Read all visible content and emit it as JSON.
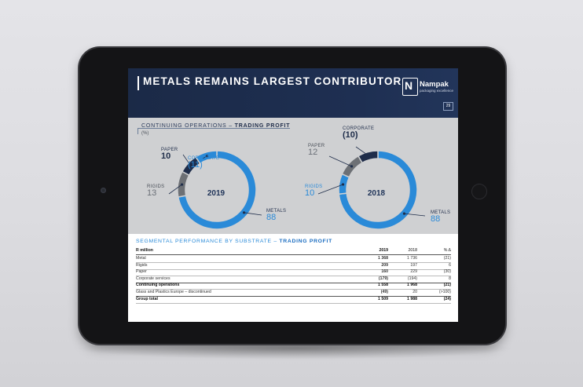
{
  "slide": {
    "title": "METALS REMAINS LARGEST CONTRIBUTOR",
    "page": "29",
    "logo": {
      "mark": "N",
      "name": "Nampak",
      "tagline": "packaging excellence"
    }
  },
  "section": {
    "prefix": "CONTINUING OPERATIONS – ",
    "emphasis": "TRADING PROFIT",
    "unit": "(%)"
  },
  "chart_data": [
    {
      "type": "pie",
      "title": "2019",
      "categories": [
        "CORPORATE",
        "PAPER",
        "RIGIDS",
        "METALS"
      ],
      "labels": [
        "(11)",
        "10",
        "13",
        "88"
      ],
      "values": [
        11,
        10,
        13,
        88
      ],
      "colors": [
        "#2a8ad8",
        "#1f2d4a",
        "#6d7075",
        "#2a8ad8"
      ]
    },
    {
      "type": "pie",
      "title": "2018",
      "categories": [
        "CORPORATE",
        "PAPER",
        "RIGIDS",
        "METALS"
      ],
      "labels": [
        "(10)",
        "12",
        "10",
        "88"
      ],
      "values": [
        10,
        12,
        10,
        88
      ],
      "colors": [
        "#1f2d4a",
        "#6d7075",
        "#2a8ad8",
        "#2a8ad8"
      ]
    }
  ],
  "table": {
    "title_prefix": "SEGMENTAL PERFORMANCE BY SUBSTRATE – ",
    "title_emphasis": "TRADING PROFIT",
    "headers": [
      "R million",
      "2019",
      "2018",
      "% Δ"
    ],
    "rows": [
      {
        "label": "Metal",
        "v2019": "1 368",
        "v2018": "1 736",
        "change": "(21)",
        "bold": false
      },
      {
        "label": "Rigids",
        "v2019": "209",
        "v2018": "197",
        "change": "6",
        "bold": false
      },
      {
        "label": "Paper",
        "v2019": "160",
        "v2018": "229",
        "change": "(30)",
        "bold": false
      },
      {
        "label": "Corporate services",
        "v2019": "(179)",
        "v2018": "(194)",
        "change": "8",
        "bold": false
      },
      {
        "label": "Continuing operations",
        "v2019": "1 558",
        "v2018": "1 968",
        "change": "(21)",
        "bold": true
      },
      {
        "label": "Glass and Plastics Europe – discontinued",
        "v2019": "(49)",
        "v2018": "20",
        "change": "(>100)",
        "bold": false
      },
      {
        "label": "Group total",
        "v2019": "1 509",
        "v2018": "1 988",
        "change": "(24)",
        "bold": true
      }
    ]
  },
  "colors": {
    "navy": "#1e2f52",
    "accent_blue": "#2a8ad8",
    "grey": "#6d7075",
    "dark_segment": "#1f2d4a"
  }
}
